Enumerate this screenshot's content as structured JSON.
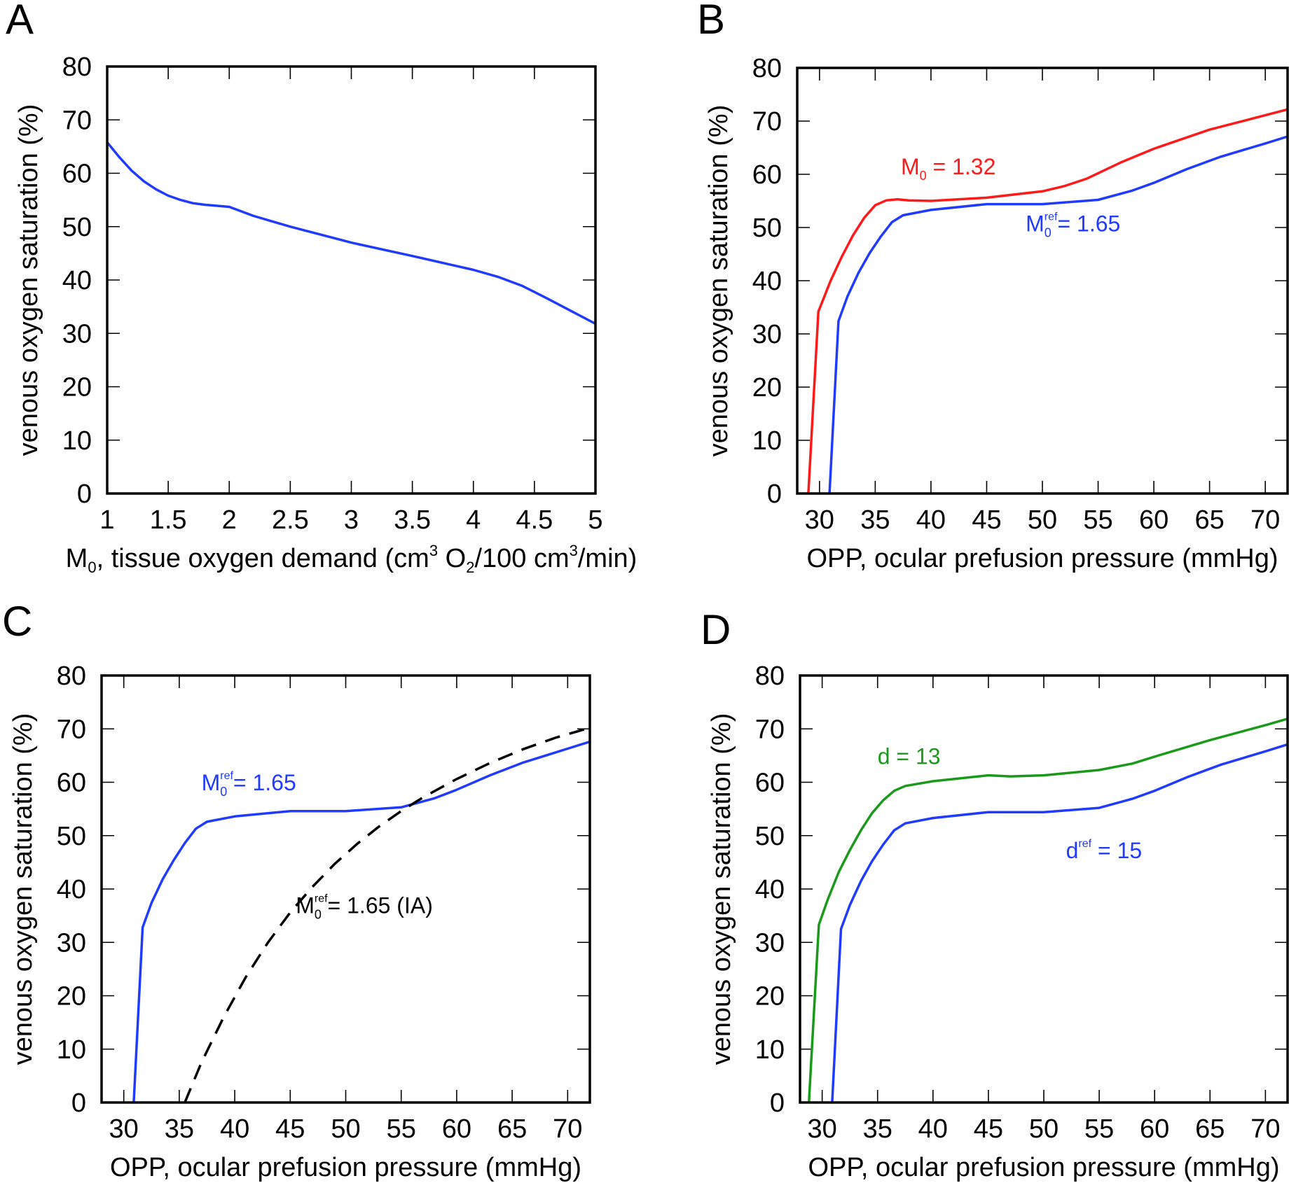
{
  "chart_data": [
    {
      "type": "line",
      "panel": "A",
      "xlabel": "M₀, tissue oxygen demand (cm³ O₂/100 cm³/min)",
      "ylabel": "venous oxygen saturation (%)",
      "xlim": [
        1,
        5
      ],
      "ylim": [
        0,
        80
      ],
      "xticks": [
        1,
        1.5,
        2,
        2.5,
        3,
        3.5,
        4,
        4.5,
        5
      ],
      "yticks": [
        0,
        10,
        20,
        30,
        40,
        50,
        60,
        70,
        80
      ],
      "series": [
        {
          "color": "#1f3bff",
          "dash": false,
          "x": [
            1,
            1.1,
            1.2,
            1.3,
            1.4,
            1.5,
            1.6,
            1.7,
            1.8,
            2.0,
            2.2,
            2.5,
            3.0,
            3.5,
            4.0,
            4.2,
            4.4,
            4.6,
            4.8,
            5.0
          ],
          "y": [
            65.8,
            63.0,
            60.5,
            58.5,
            57.0,
            55.8,
            55.0,
            54.4,
            54.1,
            53.7,
            52.0,
            50.0,
            47.0,
            44.5,
            41.9,
            40.6,
            38.9,
            36.6,
            34.2,
            31.8
          ]
        }
      ]
    },
    {
      "type": "line",
      "panel": "B",
      "xlabel": "OPP, ocular prefusion pressure (mmHg)",
      "ylabel": "venous oxygen saturation (%)",
      "xlim": [
        28,
        72
      ],
      "ylim": [
        0,
        80
      ],
      "xticks": [
        30,
        35,
        40,
        45,
        50,
        55,
        60,
        65,
        70
      ],
      "yticks": [
        0,
        10,
        20,
        30,
        40,
        50,
        60,
        70,
        80
      ],
      "annotations": [
        {
          "text": "M",
          "sub": "0",
          "sup": "",
          "rest": " = 1.32",
          "color": "#ff1a1a",
          "x": 37.3,
          "y": 60.0
        },
        {
          "text": "M",
          "sub": "0",
          "sup": "ref",
          "rest": "= 1.65",
          "color": "#1f3bff",
          "x": 48.5,
          "y": 49.3
        }
      ],
      "series": [
        {
          "color": "#ff1a1a",
          "dash": false,
          "x": [
            29.0,
            29.9,
            31.0,
            32.0,
            33.0,
            34.0,
            35.0,
            36.0,
            37.0,
            38.0,
            40.0,
            45.0,
            50.0,
            52.0,
            54.0,
            57.0,
            60.0,
            65.0,
            70.0,
            72.0
          ],
          "y": [
            0.0,
            34.2,
            40.0,
            44.5,
            48.5,
            51.8,
            54.2,
            55.1,
            55.3,
            55.1,
            55.0,
            55.6,
            56.8,
            57.8,
            59.2,
            62.2,
            64.8,
            68.4,
            71.1,
            72.2
          ]
        },
        {
          "color": "#1f3bff",
          "dash": false,
          "x": [
            30.9,
            31.7,
            32.5,
            33.5,
            34.5,
            35.5,
            36.5,
            37.5,
            40.0,
            45.0,
            50.0,
            55.0,
            58.0,
            60.0,
            63.0,
            66.0,
            70.0,
            72.0
          ],
          "y": [
            0.0,
            32.4,
            37.0,
            41.5,
            45.2,
            48.3,
            51.0,
            52.3,
            53.3,
            54.4,
            54.4,
            55.2,
            56.9,
            58.4,
            61.0,
            63.3,
            65.8,
            67.1
          ]
        }
      ]
    },
    {
      "type": "line",
      "panel": "C",
      "xlabel": "OPP, ocular prefusion pressure (mmHg)",
      "ylabel": "venous oxygen saturation (%)",
      "xlim": [
        28,
        72
      ],
      "ylim": [
        0,
        80
      ],
      "xticks": [
        30,
        35,
        40,
        45,
        50,
        55,
        60,
        65,
        70
      ],
      "yticks": [
        0,
        10,
        20,
        30,
        40,
        50,
        60,
        70,
        80
      ],
      "annotations": [
        {
          "text": "M",
          "sub": "0",
          "sup": "ref",
          "rest": "= 1.65",
          "color": "#1f3bff",
          "x": 37.0,
          "y": 58.5
        },
        {
          "text": "M",
          "sub": "0",
          "sup": "ref",
          "rest": "= 1.65 (IA)",
          "color": "#000000",
          "x": 45.5,
          "y": 35.5
        }
      ],
      "series": [
        {
          "color": "#1f3bff",
          "dash": false,
          "x": [
            30.9,
            31.7,
            32.5,
            33.5,
            34.5,
            35.5,
            36.5,
            37.5,
            40.0,
            45.0,
            50.0,
            55.0,
            58.0,
            60.0,
            63.0,
            66.0,
            70.0,
            72.0
          ],
          "y": [
            0.0,
            32.8,
            37.4,
            41.8,
            45.4,
            48.6,
            51.3,
            52.6,
            53.6,
            54.6,
            54.6,
            55.3,
            57.0,
            58.6,
            61.3,
            63.7,
            66.3,
            67.6
          ]
        },
        {
          "color": "#000000",
          "dash": true,
          "x": [
            35.5,
            37.0,
            39.0,
            41.0,
            43.0,
            45.0,
            47.0,
            49.0,
            51.0,
            53.0,
            55.0,
            57.0,
            60.0,
            63.0,
            66.0,
            69.0,
            72.0
          ],
          "y": [
            0.0,
            7.5,
            16.0,
            23.5,
            30.0,
            35.6,
            40.4,
            44.7,
            48.4,
            51.7,
            54.6,
            57.2,
            60.6,
            63.6,
            66.2,
            68.4,
            70.2
          ]
        }
      ]
    },
    {
      "type": "line",
      "panel": "D",
      "xlabel": "OPP, ocular prefusion pressure (mmHg)",
      "ylabel": "venous oxygen saturation (%)",
      "xlim": [
        28,
        72
      ],
      "ylim": [
        0,
        80
      ],
      "xticks": [
        30,
        35,
        40,
        45,
        50,
        55,
        60,
        65,
        70
      ],
      "yticks": [
        0,
        10,
        20,
        30,
        40,
        50,
        60,
        70,
        80
      ],
      "annotations": [
        {
          "text": "d = 13",
          "sub": "",
          "sup": "",
          "rest": "",
          "color": "#1a9a1a",
          "x": 35.0,
          "y": 63.4
        },
        {
          "text": "d",
          "sub": "",
          "sup": "ref",
          "rest": " = 15",
          "color": "#1f3bff",
          "x": 52.0,
          "y": 45.8
        }
      ],
      "series": [
        {
          "color": "#1a9a1a",
          "dash": false,
          "x": [
            28.8,
            29.7,
            30.5,
            31.5,
            32.5,
            33.5,
            34.5,
            35.5,
            36.5,
            37.5,
            40.0,
            45.0,
            47.0,
            50.0,
            55.0,
            58.0,
            60.0,
            65.0,
            70.0,
            72.0
          ],
          "y": [
            0.0,
            33.3,
            38.0,
            43.2,
            47.3,
            51.0,
            54.2,
            56.6,
            58.4,
            59.3,
            60.2,
            61.3,
            61.1,
            61.3,
            62.3,
            63.5,
            64.8,
            67.9,
            70.7,
            71.9
          ]
        },
        {
          "color": "#1f3bff",
          "dash": false,
          "x": [
            30.9,
            31.7,
            32.5,
            33.5,
            34.5,
            35.5,
            36.5,
            37.5,
            40.0,
            45.0,
            50.0,
            55.0,
            58.0,
            60.0,
            63.0,
            66.0,
            70.0,
            72.0
          ],
          "y": [
            0.0,
            32.5,
            37.0,
            41.5,
            45.2,
            48.3,
            51.0,
            52.3,
            53.3,
            54.4,
            54.4,
            55.2,
            56.9,
            58.4,
            61.0,
            63.3,
            65.8,
            67.1
          ]
        }
      ]
    }
  ]
}
